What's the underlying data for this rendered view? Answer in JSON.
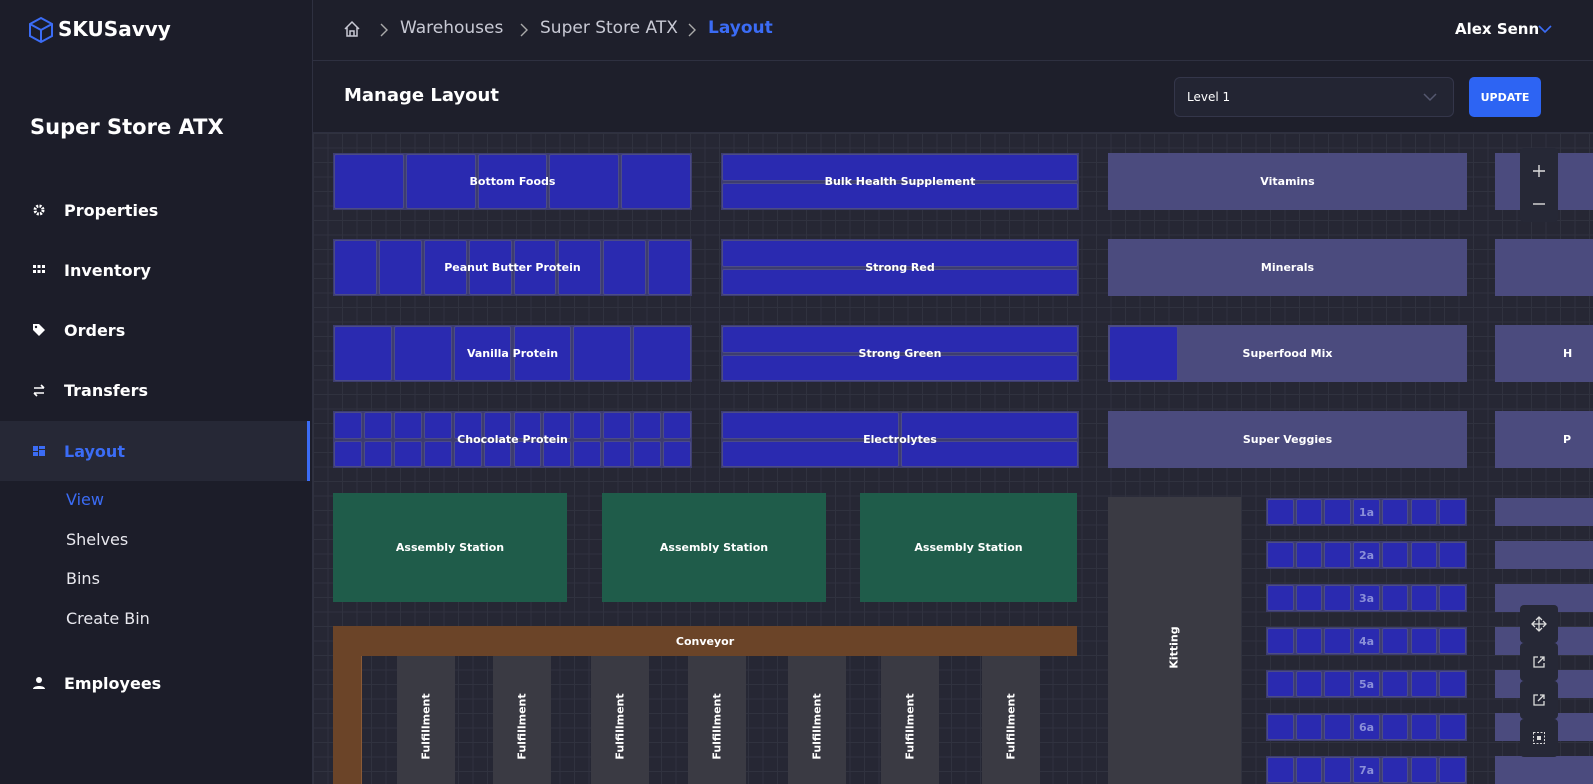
{
  "brand": "SKUSavvy",
  "breadcrumbs": [
    "Warehouses",
    "Super Store ATX",
    "Layout"
  ],
  "user": "Alex Senn",
  "sidebar": {
    "store": "Super Store ATX",
    "nav": [
      "Properties",
      "Inventory",
      "Orders",
      "Transfers",
      "Layout",
      "Employees"
    ],
    "subnav": [
      "View",
      "Shelves",
      "Bins",
      "Create Bin"
    ]
  },
  "header": {
    "title": "Manage Layout",
    "level": "Level 1",
    "button": "UPDATE"
  },
  "zones": [
    {
      "label": "Bottom Foods",
      "kind": "shelf"
    },
    {
      "label": "Bulk Health Supplement",
      "kind": "shelf"
    },
    {
      "label": "Vitamins",
      "kind": "empty"
    },
    {
      "label": "Peanut Butter Protein",
      "kind": "shelf"
    },
    {
      "label": "Strong Red",
      "kind": "shelf"
    },
    {
      "label": "Minerals",
      "kind": "empty"
    },
    {
      "label": "Vanilla Protein",
      "kind": "shelf"
    },
    {
      "label": "Strong Green",
      "kind": "shelf"
    },
    {
      "label": "Superfood Mix",
      "kind": "empty"
    },
    {
      "label": "H",
      "kind": "empty"
    },
    {
      "label": "Chocolate Protein",
      "kind": "shelf"
    },
    {
      "label": "Electrolytes",
      "kind": "shelf"
    },
    {
      "label": "Super Veggies",
      "kind": "empty"
    },
    {
      "label": "P",
      "kind": "empty"
    },
    {
      "label": "Assembly Station",
      "kind": "station"
    },
    {
      "label": "Assembly Station",
      "kind": "station"
    },
    {
      "label": "Assembly Station",
      "kind": "station"
    },
    {
      "label": "Conveyor",
      "kind": "conveyor"
    },
    {
      "label": "Fulfillment",
      "kind": "lane"
    },
    {
      "label": "Fulfillment",
      "kind": "lane"
    },
    {
      "label": "Fulfillment",
      "kind": "lane"
    },
    {
      "label": "Fulfillment",
      "kind": "lane"
    },
    {
      "label": "Fulfillment",
      "kind": "lane"
    },
    {
      "label": "Fulfillment",
      "kind": "lane"
    },
    {
      "label": "Fulfillment",
      "kind": "lane"
    },
    {
      "label": "Kitting",
      "kind": "lane"
    },
    {
      "label": "1a",
      "kind": "binrow"
    },
    {
      "label": "2a",
      "kind": "binrow"
    },
    {
      "label": "3a",
      "kind": "binrow"
    },
    {
      "label": "4a",
      "kind": "binrow"
    },
    {
      "label": "5a",
      "kind": "binrow"
    },
    {
      "label": "6a",
      "kind": "binrow"
    },
    {
      "label": "7a",
      "kind": "binrow"
    }
  ]
}
